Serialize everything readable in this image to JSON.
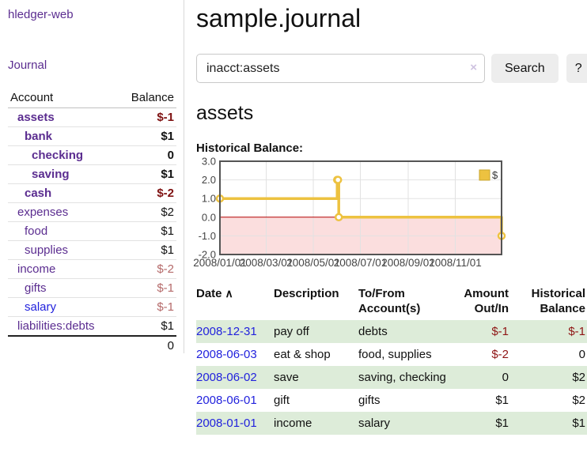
{
  "app": {
    "brand": "hledger-web",
    "nav_journal": "Journal"
  },
  "colors": {
    "link_visited": "#5b2d90",
    "link_unvisited": "#2222dd",
    "negative_strong": "#7e1010",
    "negative_soft": "#b56a6a",
    "negative_table": "#8f1515",
    "row_shade_green": "#ddecd9",
    "series_gold": "#EDC240",
    "negative_region_pink": "#fbdede",
    "zero_line_red": "#b30000"
  },
  "sidebar": {
    "header": {
      "account": "Account",
      "balance": "Balance"
    },
    "accounts": [
      {
        "label": "assets",
        "depth": 1,
        "bold": true,
        "link_style": "visited",
        "balance": "$-1",
        "balance_style": "negative-strong"
      },
      {
        "label": "bank",
        "depth": 2,
        "bold": true,
        "link_style": "visited",
        "balance": "$1",
        "balance_style": "normal"
      },
      {
        "label": "checking",
        "depth": 3,
        "bold": true,
        "link_style": "visited",
        "balance": "0",
        "balance_style": "normal"
      },
      {
        "label": "saving",
        "depth": 3,
        "bold": true,
        "link_style": "visited",
        "balance": "$1",
        "balance_style": "normal"
      },
      {
        "label": "cash",
        "depth": 2,
        "bold": true,
        "link_style": "visited",
        "balance": "$-2",
        "balance_style": "negative-strong"
      },
      {
        "label": "expenses",
        "depth": 1,
        "bold": false,
        "link_style": "visited",
        "balance": "$2",
        "balance_style": "normal"
      },
      {
        "label": "food",
        "depth": 2,
        "bold": false,
        "link_style": "visited",
        "balance": "$1",
        "balance_style": "normal"
      },
      {
        "label": "supplies",
        "depth": 2,
        "bold": false,
        "link_style": "visited",
        "balance": "$1",
        "balance_style": "normal"
      },
      {
        "label": "income",
        "depth": 1,
        "bold": false,
        "link_style": "visited",
        "balance": "$-2",
        "balance_style": "negative-soft"
      },
      {
        "label": "gifts",
        "depth": 2,
        "bold": false,
        "link_style": "visited",
        "balance": "$-1",
        "balance_style": "negative-soft"
      },
      {
        "label": "salary",
        "depth": 2,
        "bold": false,
        "link_style": "unvisited",
        "balance": "$-1",
        "balance_style": "negative-soft"
      },
      {
        "label": "liabilities:debts",
        "depth": 1,
        "bold": false,
        "link_style": "visited",
        "balance": "$1",
        "balance_style": "normal"
      }
    ],
    "total": "0"
  },
  "main": {
    "title": "sample.journal",
    "search": {
      "value": "inacct:assets",
      "clear_icon": "×",
      "search_label": "Search",
      "help_label": "?"
    },
    "heading": "assets",
    "chart_label": "Historical Balance:"
  },
  "chart_data": {
    "type": "line",
    "step": true,
    "markers": true,
    "series": [
      {
        "name": "$",
        "color": "#EDC240",
        "points": [
          [
            "2008-01-01",
            1
          ],
          [
            "2008-06-01",
            2
          ],
          [
            "2008-06-02",
            2
          ],
          [
            "2008-06-03",
            0
          ],
          [
            "2008-12-31",
            -1
          ]
        ]
      }
    ],
    "x_range": [
      "2008-01-01",
      "2008-12-31"
    ],
    "x_ticks": [
      "2008/01/01",
      "2008/03/01",
      "2008/05/01",
      "2008/07/01",
      "2008/09/01",
      "2008/11/01"
    ],
    "y_ticks": [
      -2.0,
      -1.0,
      0.0,
      1.0,
      2.0,
      3.0
    ],
    "ylim": [
      -2.0,
      3.0
    ],
    "grid": true,
    "legend": {
      "label": "$",
      "position": "top-right"
    },
    "negative_region_shaded": true
  },
  "register": {
    "headers": {
      "date": "Date",
      "sort_icon": "∧",
      "description": "Description",
      "accounts": "To/From Account(s)",
      "amount": "Amount Out/In",
      "balance": "Historical Balance"
    },
    "rows": [
      {
        "date": "2008-12-31",
        "description": "pay off",
        "accounts": "debts",
        "amount": "$-1",
        "amount_negative": true,
        "balance": "$-1",
        "balance_negative": true,
        "shaded": true
      },
      {
        "date": "2008-06-03",
        "description": "eat & shop",
        "accounts": "food, supplies",
        "amount": "$-2",
        "amount_negative": true,
        "balance": "0",
        "balance_negative": false,
        "shaded": false
      },
      {
        "date": "2008-06-02",
        "description": "save",
        "accounts": "saving, checking",
        "amount": "0",
        "amount_negative": false,
        "balance": "$2",
        "balance_negative": false,
        "shaded": true
      },
      {
        "date": "2008-06-01",
        "description": "gift",
        "accounts": "gifts",
        "amount": "$1",
        "amount_negative": false,
        "balance": "$2",
        "balance_negative": false,
        "shaded": false
      },
      {
        "date": "2008-01-01",
        "description": "income",
        "accounts": "salary",
        "amount": "$1",
        "amount_negative": false,
        "balance": "$1",
        "balance_negative": false,
        "shaded": true
      }
    ]
  }
}
